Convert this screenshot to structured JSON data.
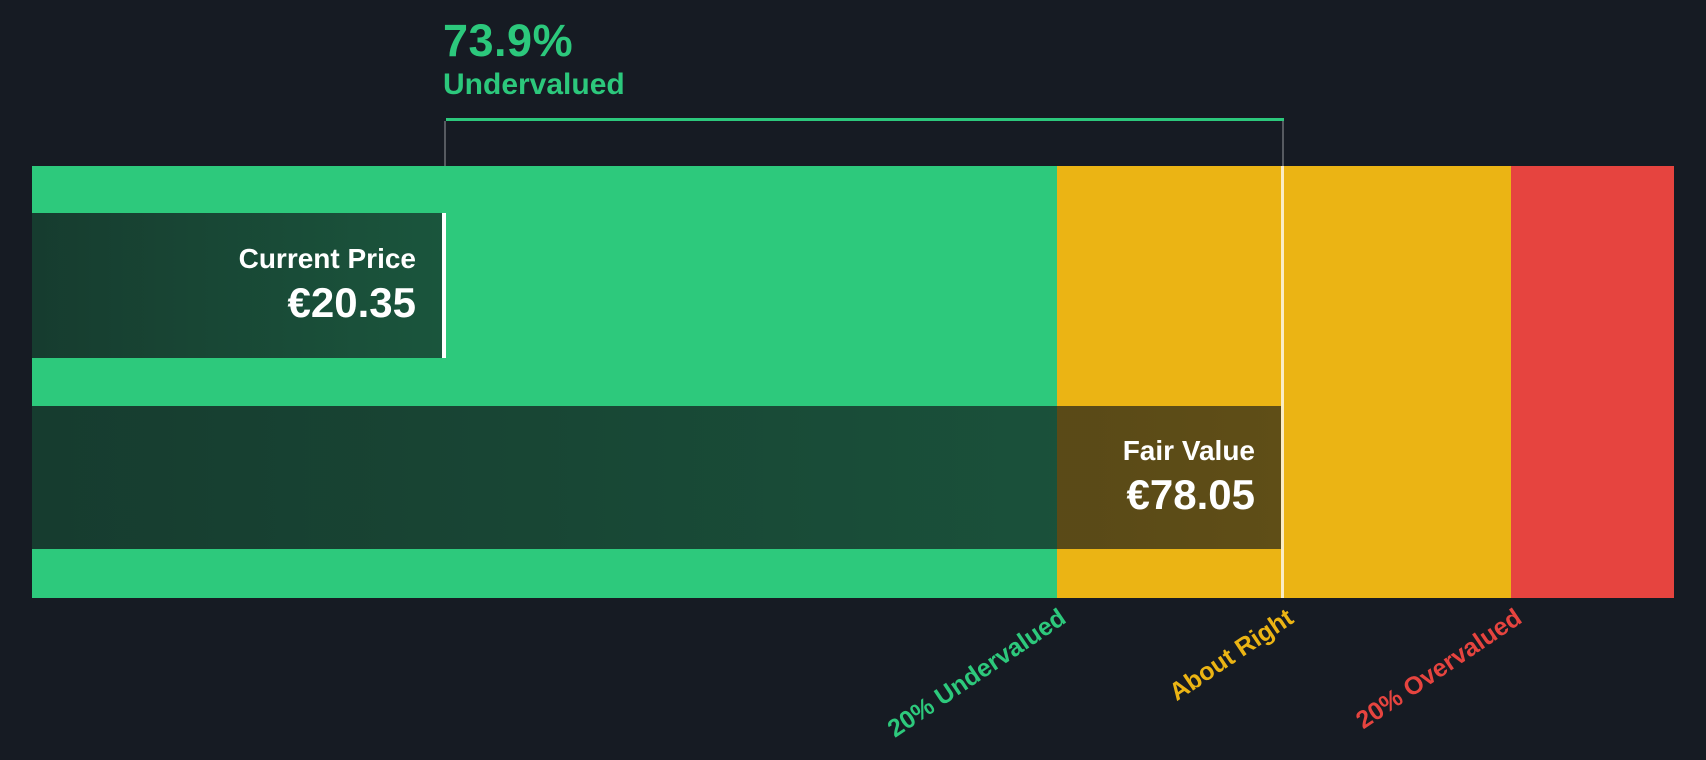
{
  "header": {
    "discount_percent": "73.9%",
    "discount_label": "Undervalued"
  },
  "current_price": {
    "label": "Current Price",
    "value": "€20.35"
  },
  "fair_value": {
    "label": "Fair Value",
    "value": "€78.05"
  },
  "axis_labels": [
    {
      "text": "20% Undervalued",
      "color": "#2dc97c"
    },
    {
      "text": "About Right",
      "color": "#ebb414"
    },
    {
      "text": "20% Overvalued",
      "color": "#e6443f"
    }
  ],
  "colors": {
    "background": "#161b23",
    "undervalued_zone": "#2dc97c",
    "about_right_zone": "#ebb414",
    "overvalued_zone": "#e6443f",
    "annotation_green": "#2cc87c",
    "text_white": "#ffffff"
  },
  "chart_data": {
    "type": "bar",
    "title": "73.9% Undervalued",
    "series": [
      {
        "name": "Current Price",
        "value": 20.35,
        "currency": "EUR"
      },
      {
        "name": "Fair Value",
        "value": 78.05,
        "currency": "EUR"
      }
    ],
    "discount_percent": 73.9,
    "zones": [
      {
        "label": "20% Undervalued",
        "price_range_eur": [
          null,
          62.44
        ],
        "color": "#2dc97c"
      },
      {
        "label": "About Right",
        "price_range_eur": [
          62.44,
          93.66
        ],
        "color": "#ebb414"
      },
      {
        "label": "20% Overvalued",
        "price_range_eur": [
          93.66,
          null
        ],
        "color": "#e6443f"
      }
    ],
    "x_axis_price_range_eur_estimate": [
      -8,
      105
    ],
    "legend_position": "none",
    "grid": false,
    "orientation": "horizontal"
  }
}
